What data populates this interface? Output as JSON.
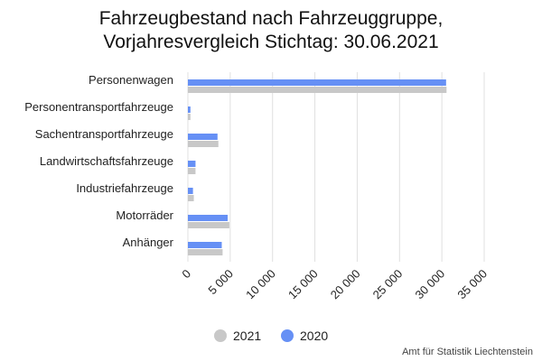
{
  "title_line1": "Fahrzeugbestand nach Fahrzeuggruppe,",
  "title_line2": "Vorjahresvergleich Stichtag: 30.06.2021",
  "source": "Amt für Statistik Liechtenstein",
  "colors": {
    "2021": "#c8c8c8",
    "2020": "#6690f5",
    "grid": "#e0e0e0"
  },
  "chart_data": {
    "type": "bar",
    "orientation": "horizontal",
    "categories": [
      "Personenwagen",
      "Personentransportfahrzeuge",
      "Sachentransportfahrzeuge",
      "Landwirtschaftsfahrzeuge",
      "Industriefahrzeuge",
      "Motorräder",
      "Anhänger"
    ],
    "series": [
      {
        "name": "2020",
        "values": [
          30500,
          300,
          3500,
          900,
          600,
          4700,
          4000
        ]
      },
      {
        "name": "2021",
        "values": [
          30550,
          300,
          3600,
          900,
          700,
          4900,
          4100
        ]
      }
    ],
    "xlim": [
      0,
      35000
    ],
    "xticks": [
      0,
      5000,
      10000,
      15000,
      20000,
      25000,
      30000,
      35000
    ],
    "xtick_labels": [
      "0",
      "5 000",
      "10 000",
      "15 000",
      "20 000",
      "25 000",
      "30 000",
      "35 000"
    ],
    "grid": true,
    "legend": {
      "position": "bottom",
      "entries": [
        "2021",
        "2020"
      ]
    }
  }
}
